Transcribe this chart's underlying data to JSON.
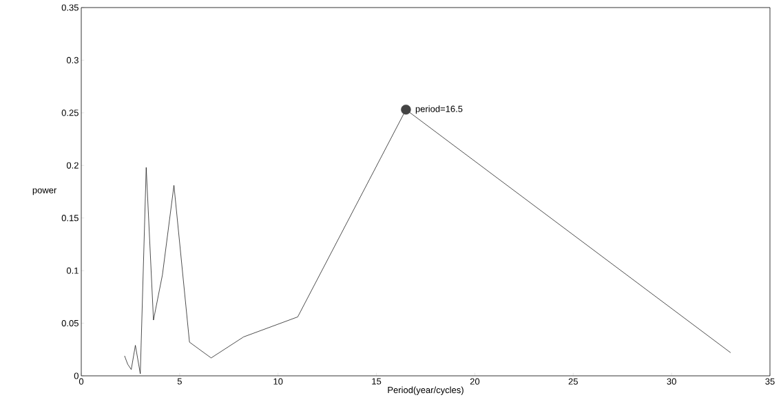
{
  "chart_data": {
    "type": "line",
    "xlabel": "Period(year/cycles)",
    "ylabel": "power",
    "xlim": [
      0,
      35
    ],
    "xticks": [
      0,
      5,
      10,
      15,
      20,
      25,
      30,
      35
    ],
    "ylim": [
      0,
      0.35
    ],
    "yticks": [
      0,
      0.05,
      0.1,
      0.15,
      0.2,
      0.25,
      0.3,
      0.35
    ],
    "grid": false,
    "marker": "none",
    "line_style": "solid",
    "series": [
      {
        "color": "#000000",
        "x": [
          2.2,
          2.36,
          2.54,
          2.75,
          3.0,
          3.3,
          3.67,
          4.125,
          4.71,
          5.5,
          6.6,
          8.25,
          11,
          16.5,
          33
        ],
        "values": [
          0.019,
          0.011,
          0.006,
          0.029,
          0.002,
          0.198,
          0.053,
          0.096,
          0.181,
          0.032,
          0.017,
          0.037,
          0.056,
          0.253,
          0.022
        ]
      },
      {
        "type": "scatter",
        "color": "#444444",
        "marker": "circle",
        "x": [
          16.5
        ],
        "values": [
          0.253
        ]
      }
    ],
    "annotations": [
      {
        "text": "period=16.5",
        "x": 16.5,
        "y": 0.253
      }
    ]
  }
}
